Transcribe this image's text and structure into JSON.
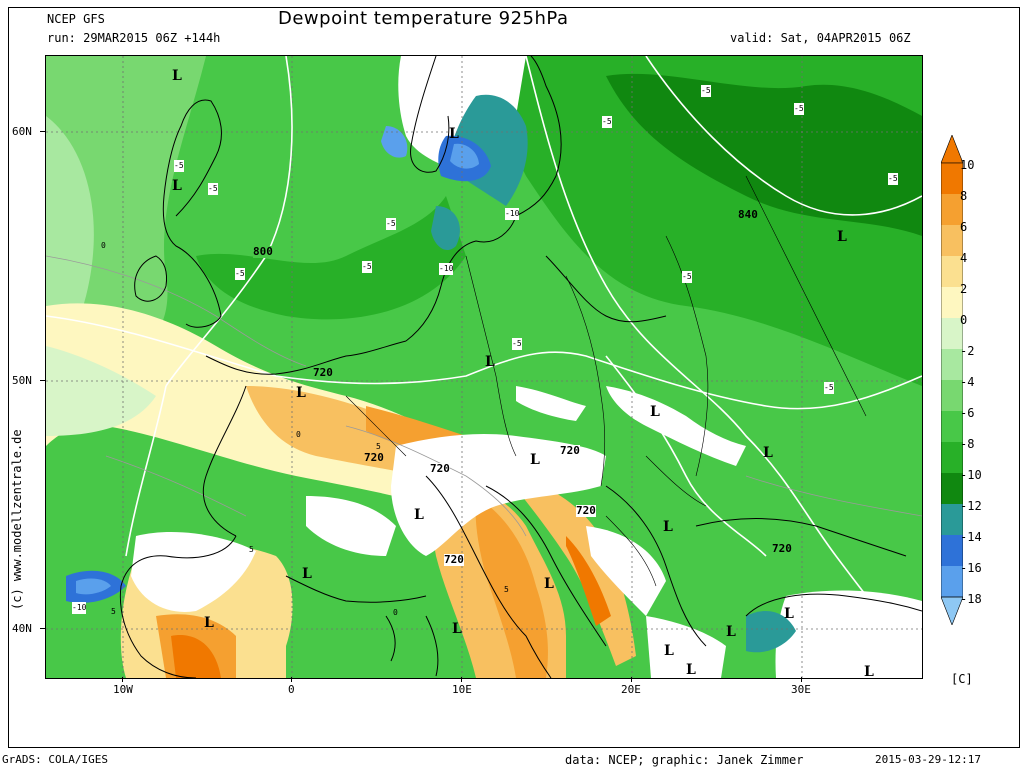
{
  "header": {
    "model": "NCEP GFS",
    "run": "run: 29MAR2015 06Z +144h",
    "title": "Dewpoint temperature 925hPa",
    "valid": "valid: Sat, 04APR2015 06Z"
  },
  "axes": {
    "lat_labels": [
      "60N",
      "50N",
      "40N"
    ],
    "lon_labels": [
      "10W",
      "0",
      "10E",
      "20E",
      "30E"
    ]
  },
  "map_labels": {
    "lows": [
      "L",
      "L",
      "L",
      "L",
      "L",
      "L",
      "L",
      "L",
      "L",
      "L",
      "L",
      "L",
      "L",
      "L",
      "L",
      "L",
      "L",
      "L",
      "L",
      "L"
    ],
    "geopotential": [
      "800",
      "840",
      "720",
      "720",
      "720",
      "720",
      "720",
      "720",
      "720"
    ],
    "dewpoint_contours": [
      "-5",
      "-5",
      "-5",
      "-5",
      "-5",
      "-5",
      "-5",
      "-5",
      "-5",
      "-5",
      "-5",
      "-5",
      "-10",
      "-10",
      "-10",
      "0",
      "0",
      "5",
      "5",
      "5",
      "5",
      "0"
    ]
  },
  "colorbar": {
    "labels": [
      "10",
      "8",
      "6",
      "4",
      "2",
      "0",
      "-2",
      "-4",
      "-6",
      "-8",
      "-10",
      "-12",
      "-14",
      "-16",
      "-18"
    ],
    "colors": [
      "#f07800",
      "#f5a030",
      "#f8c060",
      "#fbe090",
      "#fef7c0",
      "#d8f5c8",
      "#a8e8a0",
      "#78d870",
      "#48c848",
      "#28b028",
      "#108810",
      "#2a9a98",
      "#2e72d8",
      "#5aa0ec",
      "#8ec8f4"
    ],
    "unit": "[C]"
  },
  "watermark": "(c) www.modellzentrale.de",
  "footer": {
    "left": "GrADS: COLA/IGES",
    "credits": "data: NCEP; graphic: Janek Zimmer",
    "date": "2015-03-29-12:17"
  }
}
